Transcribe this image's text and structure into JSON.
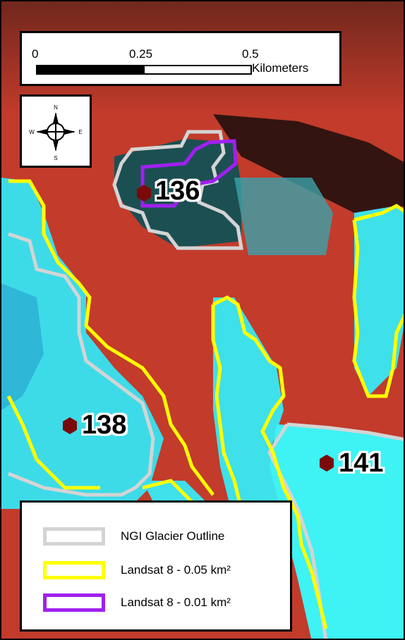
{
  "scale_bar": {
    "ticks": [
      "0",
      "0.25",
      "0.5"
    ],
    "unit": "Kilometers"
  },
  "north_arrow": {
    "n": "N",
    "s": "S",
    "e": "E",
    "w": "W",
    "icon": "compass-rose-icon"
  },
  "sites": [
    {
      "label": "136"
    },
    {
      "label": "138"
    },
    {
      "label": "141"
    }
  ],
  "legend": {
    "items": [
      {
        "label": "NGI Glacier Outline",
        "color": "#d4d4d4"
      },
      {
        "label": "Landsat 8 - 0.05 km²",
        "color": "#ffff00"
      },
      {
        "label": "Landsat 8 - 0.01 km²",
        "color": "#a020f0"
      }
    ]
  },
  "colors": {
    "background": "#c0392b",
    "ice": "#33e6f0",
    "shadow": "#153c40",
    "marker": "#7a0a0a"
  }
}
